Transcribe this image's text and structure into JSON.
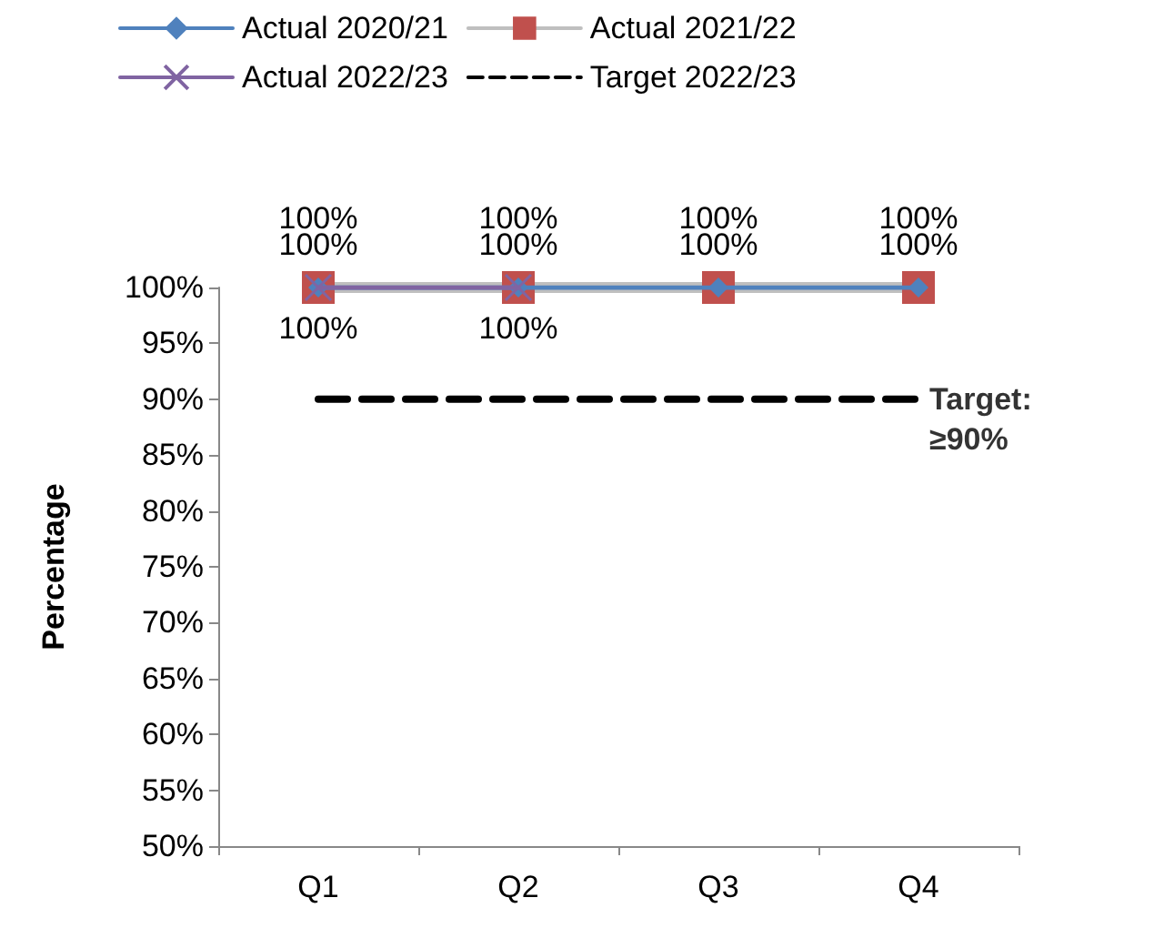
{
  "chart_data": {
    "type": "line",
    "ylabel": "Percentage",
    "categories": [
      "Q1",
      "Q2",
      "Q3",
      "Q4"
    ],
    "series": [
      {
        "name": "Actual 2020/21",
        "color": "#4f81bd",
        "marker": "diamond",
        "values": [
          100,
          100,
          100,
          100
        ],
        "value_labels": [
          "100%",
          "100%",
          "100%",
          "100%"
        ]
      },
      {
        "name": "Actual 2021/22",
        "color": "#bfbfbf",
        "colors": [
          "#c0504d",
          "#c0504d",
          "#c0504d",
          "#c0504d"
        ],
        "marker": "square",
        "values": [
          100,
          100,
          100,
          100
        ],
        "value_labels": [
          "100%",
          "100%",
          "100%",
          "100%"
        ]
      },
      {
        "name": "Actual 2022/23",
        "color": "#8064a2",
        "marker": "cross",
        "values": [
          100,
          100,
          null,
          null
        ],
        "value_labels": [
          "100%",
          "100%",
          null,
          null
        ]
      },
      {
        "name": "Target 2022/23",
        "color": "#000000",
        "marker": "none",
        "line_style": "dashed",
        "values": [
          90,
          90,
          90,
          90
        ]
      }
    ],
    "ylim": [
      50,
      100
    ],
    "yticks": [
      {
        "value": 50,
        "label": "50%"
      },
      {
        "value": 55,
        "label": "55%"
      },
      {
        "value": 60,
        "label": "60%"
      },
      {
        "value": 65,
        "label": "65%"
      },
      {
        "value": 70,
        "label": "70%"
      },
      {
        "value": 75,
        "label": "75%"
      },
      {
        "value": 80,
        "label": "80%"
      },
      {
        "value": 85,
        "label": "85%"
      },
      {
        "value": 90,
        "label": "90%"
      },
      {
        "value": 95,
        "label": "95%"
      },
      {
        "value": 100,
        "label": "100%"
      }
    ],
    "annotations": [
      {
        "text": "Target: ≥90%",
        "x": "Q4",
        "y": 90
      }
    ],
    "legend": "top",
    "grid": false
  }
}
